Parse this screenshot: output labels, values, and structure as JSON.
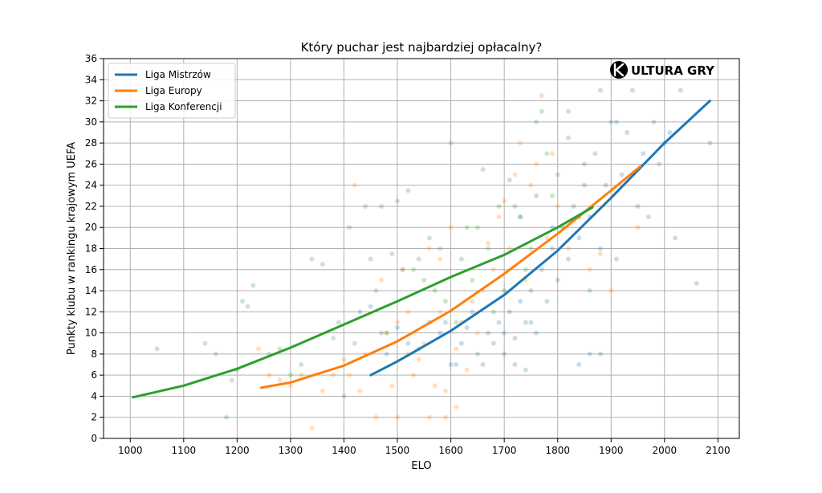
{
  "chart_data": {
    "type": "scatter",
    "title": "Który puchar jest najbardziej opłacalny?",
    "xlabel": "ELO",
    "ylabel": "Punkty klubu w rankingu krajowym UEFA",
    "xlim": [
      950,
      2140
    ],
    "ylim": [
      0,
      36
    ],
    "xticks": [
      1000,
      1100,
      1200,
      1300,
      1400,
      1500,
      1600,
      1700,
      1800,
      1900,
      2000,
      2100
    ],
    "yticks": [
      0,
      2,
      4,
      6,
      8,
      10,
      12,
      14,
      16,
      18,
      20,
      22,
      24,
      26,
      28,
      30,
      32,
      34,
      36
    ],
    "grid": true,
    "legend_position": "top-left",
    "logo": "KULTURA GRY",
    "series": [
      {
        "name": "Liga Mistrzów",
        "color": "#1f77b4",
        "curve": {
          "x": [
            1450,
            1500,
            1600,
            1700,
            1800,
            1900,
            2000,
            2085
          ],
          "y": [
            6.0,
            7.3,
            10.2,
            13.6,
            17.8,
            22.8,
            28.0,
            32.0
          ]
        },
        "points": [
          [
            1430,
            12
          ],
          [
            1450,
            12.5
          ],
          [
            1470,
            10
          ],
          [
            1480,
            8
          ],
          [
            1500,
            10.5
          ],
          [
            1520,
            9
          ],
          [
            1540,
            8.5
          ],
          [
            1560,
            11
          ],
          [
            1580,
            10
          ],
          [
            1590,
            11
          ],
          [
            1600,
            7
          ],
          [
            1610,
            7
          ],
          [
            1620,
            9
          ],
          [
            1630,
            10.5
          ],
          [
            1640,
            12
          ],
          [
            1650,
            8
          ],
          [
            1660,
            7
          ],
          [
            1670,
            10
          ],
          [
            1680,
            9
          ],
          [
            1690,
            11
          ],
          [
            1700,
            8
          ],
          [
            1710,
            12
          ],
          [
            1720,
            9.5
          ],
          [
            1730,
            13
          ],
          [
            1740,
            11
          ],
          [
            1750,
            14
          ],
          [
            1760,
            10
          ],
          [
            1770,
            16
          ],
          [
            1780,
            13
          ],
          [
            1790,
            18
          ],
          [
            1800,
            15
          ],
          [
            1810,
            20
          ],
          [
            1820,
            17
          ],
          [
            1830,
            22
          ],
          [
            1840,
            19
          ],
          [
            1850,
            24
          ],
          [
            1860,
            21
          ],
          [
            1870,
            27
          ],
          [
            1880,
            18
          ],
          [
            1890,
            24
          ],
          [
            1900,
            30
          ],
          [
            1910,
            17
          ],
          [
            1920,
            25
          ],
          [
            1930,
            29
          ],
          [
            1940,
            33
          ],
          [
            1950,
            22
          ],
          [
            1960,
            27
          ],
          [
            1970,
            21
          ],
          [
            1980,
            30
          ],
          [
            1990,
            26
          ],
          [
            2000,
            28
          ],
          [
            2010,
            29
          ],
          [
            2020,
            19
          ],
          [
            2030,
            33
          ],
          [
            2060,
            14.7
          ],
          [
            2085,
            28
          ],
          [
            1880,
            8
          ],
          [
            1860,
            8
          ],
          [
            1840,
            7
          ],
          [
            1750,
            11
          ],
          [
            1740,
            6.5
          ],
          [
            1720,
            7
          ],
          [
            1700,
            10
          ],
          [
            1820,
            28.5
          ],
          [
            1790,
            20
          ],
          [
            1850,
            26
          ],
          [
            1760,
            23
          ],
          [
            1730,
            21
          ],
          [
            1880,
            33
          ],
          [
            1910,
            30
          ]
        ]
      },
      {
        "name": "Liga Europy",
        "color": "#ff7f0e",
        "curve": {
          "x": [
            1245,
            1300,
            1400,
            1500,
            1600,
            1700,
            1800,
            1900,
            1955
          ],
          "y": [
            4.8,
            5.3,
            6.9,
            9.2,
            12.1,
            15.6,
            19.4,
            23.5,
            25.8
          ]
        },
        "points": [
          [
            1240,
            8.5
          ],
          [
            1260,
            6
          ],
          [
            1280,
            5.5
          ],
          [
            1300,
            5
          ],
          [
            1320,
            6
          ],
          [
            1340,
            1
          ],
          [
            1360,
            4.5
          ],
          [
            1380,
            6
          ],
          [
            1400,
            7.5
          ],
          [
            1410,
            6
          ],
          [
            1420,
            24
          ],
          [
            1430,
            4.5
          ],
          [
            1440,
            8
          ],
          [
            1460,
            2
          ],
          [
            1470,
            15
          ],
          [
            1480,
            10
          ],
          [
            1490,
            5
          ],
          [
            1500,
            11
          ],
          [
            1510,
            16
          ],
          [
            1520,
            8
          ],
          [
            1530,
            6
          ],
          [
            1540,
            7.5
          ],
          [
            1550,
            9
          ],
          [
            1560,
            18
          ],
          [
            1570,
            5
          ],
          [
            1580,
            12
          ],
          [
            1590,
            4.5
          ],
          [
            1600,
            20
          ],
          [
            1610,
            8.5
          ],
          [
            1620,
            11
          ],
          [
            1630,
            6.5
          ],
          [
            1640,
            13
          ],
          [
            1650,
            10
          ],
          [
            1660,
            14
          ],
          [
            1670,
            18.5
          ],
          [
            1680,
            16
          ],
          [
            1690,
            21
          ],
          [
            1700,
            22.5
          ],
          [
            1710,
            18
          ],
          [
            1720,
            25
          ],
          [
            1730,
            28
          ],
          [
            1740,
            15
          ],
          [
            1750,
            24
          ],
          [
            1760,
            26
          ],
          [
            1770,
            32.5
          ],
          [
            1780,
            19
          ],
          [
            1790,
            27
          ],
          [
            1800,
            22
          ],
          [
            1820,
            18
          ],
          [
            1840,
            21
          ],
          [
            1860,
            16
          ],
          [
            1880,
            17.5
          ],
          [
            1900,
            14
          ],
          [
            1950,
            20
          ],
          [
            1560,
            2
          ],
          [
            1590,
            2
          ],
          [
            1610,
            3
          ],
          [
            1500,
            2
          ],
          [
            1520,
            12
          ],
          [
            1580,
            17
          ]
        ]
      },
      {
        "name": "Liga Konferencji",
        "color": "#2ca02c",
        "curve": {
          "x": [
            1005,
            1100,
            1200,
            1300,
            1400,
            1500,
            1600,
            1700,
            1800,
            1865
          ],
          "y": [
            3.9,
            5.0,
            6.6,
            8.6,
            10.8,
            13.0,
            15.3,
            17.4,
            20.0,
            21.9
          ]
        },
        "points": [
          [
            1050,
            8.5
          ],
          [
            1140,
            9
          ],
          [
            1160,
            8
          ],
          [
            1180,
            2
          ],
          [
            1190,
            5.5
          ],
          [
            1200,
            6.5
          ],
          [
            1210,
            13
          ],
          [
            1220,
            12.5
          ],
          [
            1230,
            14.5
          ],
          [
            1260,
            8
          ],
          [
            1280,
            8.5
          ],
          [
            1300,
            6
          ],
          [
            1320,
            7
          ],
          [
            1340,
            17
          ],
          [
            1360,
            16.5
          ],
          [
            1380,
            9.5
          ],
          [
            1390,
            11
          ],
          [
            1400,
            4
          ],
          [
            1410,
            20
          ],
          [
            1420,
            9
          ],
          [
            1440,
            22
          ],
          [
            1450,
            17
          ],
          [
            1460,
            14
          ],
          [
            1470,
            22
          ],
          [
            1480,
            10
          ],
          [
            1490,
            17.5
          ],
          [
            1500,
            22.5
          ],
          [
            1510,
            16
          ],
          [
            1520,
            23.5
          ],
          [
            1530,
            16
          ],
          [
            1540,
            17
          ],
          [
            1550,
            15
          ],
          [
            1560,
            19
          ],
          [
            1570,
            14
          ],
          [
            1580,
            18
          ],
          [
            1590,
            13
          ],
          [
            1600,
            28
          ],
          [
            1610,
            11
          ],
          [
            1620,
            17
          ],
          [
            1630,
            20
          ],
          [
            1640,
            15
          ],
          [
            1650,
            20
          ],
          [
            1660,
            25.5
          ],
          [
            1670,
            18
          ],
          [
            1680,
            12
          ],
          [
            1690,
            22
          ],
          [
            1700,
            14
          ],
          [
            1710,
            24.5
          ],
          [
            1720,
            22
          ],
          [
            1730,
            21
          ],
          [
            1740,
            16
          ],
          [
            1750,
            18
          ],
          [
            1760,
            30
          ],
          [
            1770,
            31
          ],
          [
            1780,
            27
          ],
          [
            1790,
            23
          ],
          [
            1800,
            25
          ],
          [
            1820,
            31
          ],
          [
            1840,
            21
          ],
          [
            1860,
            14
          ]
        ]
      }
    ]
  }
}
